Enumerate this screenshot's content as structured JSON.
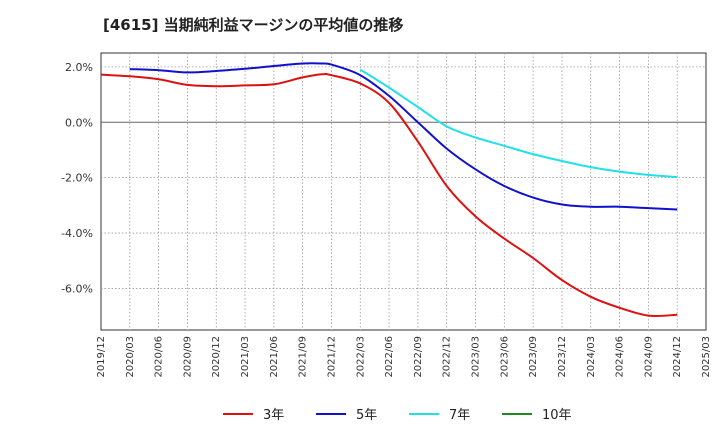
{
  "chart_data": {
    "type": "line",
    "title": "[4615]  当期純利益マージンの平均値の推移",
    "xlabel": "",
    "ylabel": "",
    "ylim": [
      -7.5,
      2.5
    ],
    "y_ticks": [
      2.0,
      0.0,
      -2.0,
      -4.0,
      -6.0
    ],
    "y_tick_labels": [
      "2.0%",
      "0.0%",
      "-2.0%",
      "-4.0%",
      "-6.0%"
    ],
    "x_tick_labels": [
      "2019/12",
      "2020/03",
      "2020/06",
      "2020/09",
      "2020/12",
      "2021/03",
      "2021/06",
      "2021/09",
      "2021/12",
      "2022/03",
      "2022/06",
      "2022/09",
      "2022/12",
      "2023/03",
      "2023/06",
      "2023/09",
      "2023/12",
      "2024/03",
      "2024/06",
      "2024/09",
      "2024/12",
      "2025/03"
    ],
    "grid": true,
    "legend_position": "bottom",
    "series": [
      {
        "name": "3年",
        "color": "#dd1111",
        "points": [
          [
            "2019/12",
            1.72
          ],
          [
            "2020/03",
            1.66
          ],
          [
            "2020/06",
            1.55
          ],
          [
            "2020/09",
            1.35
          ],
          [
            "2020/12",
            1.3
          ],
          [
            "2021/03",
            1.33
          ],
          [
            "2021/06",
            1.37
          ],
          [
            "2021/09",
            1.62
          ],
          [
            "2021/11",
            1.73
          ],
          [
            "2021/12",
            1.7
          ],
          [
            "2022/03",
            1.4
          ],
          [
            "2022/06",
            0.7
          ],
          [
            "2022/09",
            -0.7
          ],
          [
            "2022/12",
            -2.3
          ],
          [
            "2023/03",
            -3.4
          ],
          [
            "2023/06",
            -4.2
          ],
          [
            "2023/09",
            -4.9
          ],
          [
            "2023/12",
            -5.7
          ],
          [
            "2024/03",
            -6.3
          ],
          [
            "2024/06",
            -6.7
          ],
          [
            "2024/09",
            -6.98
          ],
          [
            "2024/12",
            -6.95
          ]
        ]
      },
      {
        "name": "5年",
        "color": "#1111cc",
        "points": [
          [
            "2020/03",
            1.92
          ],
          [
            "2020/06",
            1.88
          ],
          [
            "2020/09",
            1.8
          ],
          [
            "2020/12",
            1.85
          ],
          [
            "2021/03",
            1.93
          ],
          [
            "2021/06",
            2.03
          ],
          [
            "2021/09",
            2.12
          ],
          [
            "2021/11",
            2.12
          ],
          [
            "2021/12",
            2.08
          ],
          [
            "2022/03",
            1.7
          ],
          [
            "2022/06",
            0.95
          ],
          [
            "2022/09",
            0.0
          ],
          [
            "2022/12",
            -0.95
          ],
          [
            "2023/03",
            -1.7
          ],
          [
            "2023/06",
            -2.3
          ],
          [
            "2023/09",
            -2.72
          ],
          [
            "2023/12",
            -2.97
          ],
          [
            "2024/03",
            -3.05
          ],
          [
            "2024/06",
            -3.05
          ],
          [
            "2024/09",
            -3.1
          ],
          [
            "2024/12",
            -3.15
          ]
        ]
      },
      {
        "name": "7年",
        "color": "#22e0e8",
        "points": [
          [
            "2022/03",
            1.9
          ],
          [
            "2022/06",
            1.25
          ],
          [
            "2022/09",
            0.55
          ],
          [
            "2022/12",
            -0.15
          ],
          [
            "2023/03",
            -0.55
          ],
          [
            "2023/06",
            -0.85
          ],
          [
            "2023/09",
            -1.15
          ],
          [
            "2023/12",
            -1.4
          ],
          [
            "2024/03",
            -1.62
          ],
          [
            "2024/06",
            -1.78
          ],
          [
            "2024/09",
            -1.9
          ],
          [
            "2024/12",
            -1.98
          ]
        ]
      },
      {
        "name": "10年",
        "color": "#228822",
        "points": []
      }
    ]
  }
}
